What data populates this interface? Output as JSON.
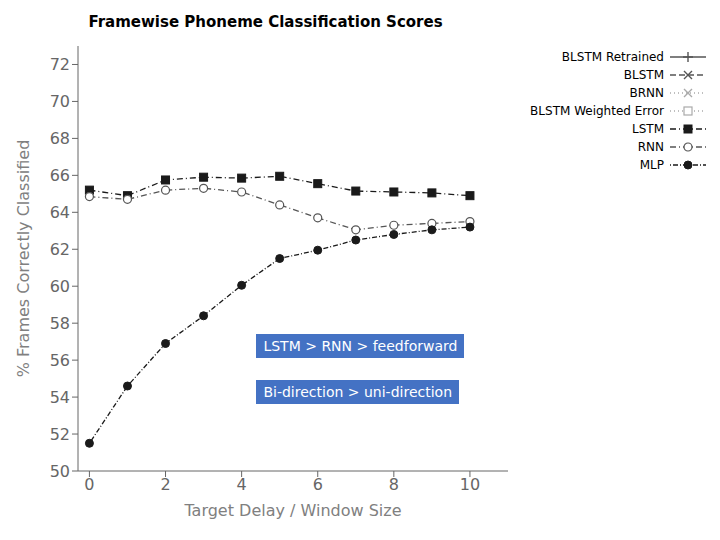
{
  "chart_data": {
    "type": "line",
    "title": "Framewise Phoneme Classification Scores",
    "xlabel": "Target Delay / Window Size",
    "ylabel": "% Frames Correctly Classified",
    "x": [
      0,
      1,
      2,
      3,
      4,
      5,
      6,
      7,
      8,
      9,
      10
    ],
    "xlim": [
      -0.3,
      11.0
    ],
    "xticks": [
      0,
      2,
      4,
      6,
      8,
      10
    ],
    "ylim": [
      50,
      73
    ],
    "yticks": [
      50,
      52,
      54,
      56,
      58,
      60,
      62,
      64,
      66,
      68,
      70,
      72
    ],
    "grid": false,
    "legend": "upper right",
    "series": [
      {
        "name": "BLSTM Retrained",
        "color": "#555555",
        "marker": "plus",
        "line_style": "solid",
        "values": [
          null,
          null,
          null,
          null,
          null,
          null,
          null,
          null,
          null,
          null,
          null
        ]
      },
      {
        "name": "BLSTM",
        "color": "#555555",
        "marker": "x",
        "line_style": "dashed",
        "values": [
          null,
          null,
          null,
          null,
          null,
          null,
          null,
          null,
          null,
          null,
          null
        ]
      },
      {
        "name": "BRNN",
        "color": "#aaaaaa",
        "marker": "x",
        "line_style": "dotted",
        "values": [
          null,
          null,
          null,
          null,
          null,
          null,
          null,
          null,
          null,
          null,
          null
        ]
      },
      {
        "name": "BLSTM Weighted Error",
        "color": "#aaaaaa",
        "marker": "open_square",
        "line_style": "dotted",
        "values": [
          null,
          null,
          null,
          null,
          null,
          null,
          null,
          null,
          null,
          null,
          null
        ]
      },
      {
        "name": "LSTM",
        "color": "#1a1a1a",
        "marker": "square",
        "line_style": "dashdot",
        "values": [
          65.2,
          64.9,
          65.75,
          65.9,
          65.85,
          65.95,
          65.55,
          65.15,
          65.1,
          65.05,
          64.9
        ]
      },
      {
        "name": "RNN",
        "color": "#555555",
        "marker": "open_circle",
        "line_style": "dashdot",
        "values": [
          64.85,
          64.7,
          65.2,
          65.3,
          65.1,
          64.4,
          63.7,
          63.05,
          63.3,
          63.4,
          63.5
        ]
      },
      {
        "name": "MLP",
        "color": "#1a1a1a",
        "marker": "circle",
        "line_style": "dotdash",
        "values": [
          51.5,
          54.6,
          56.9,
          58.4,
          60.05,
          61.5,
          61.95,
          62.5,
          62.8,
          63.05,
          63.2
        ]
      }
    ],
    "annotations": [
      {
        "text": "LSTM > RNN > feedforward",
        "color": "#4472c4"
      },
      {
        "text": "Bi-direction > uni-direction",
        "color": "#4472c4"
      }
    ]
  }
}
